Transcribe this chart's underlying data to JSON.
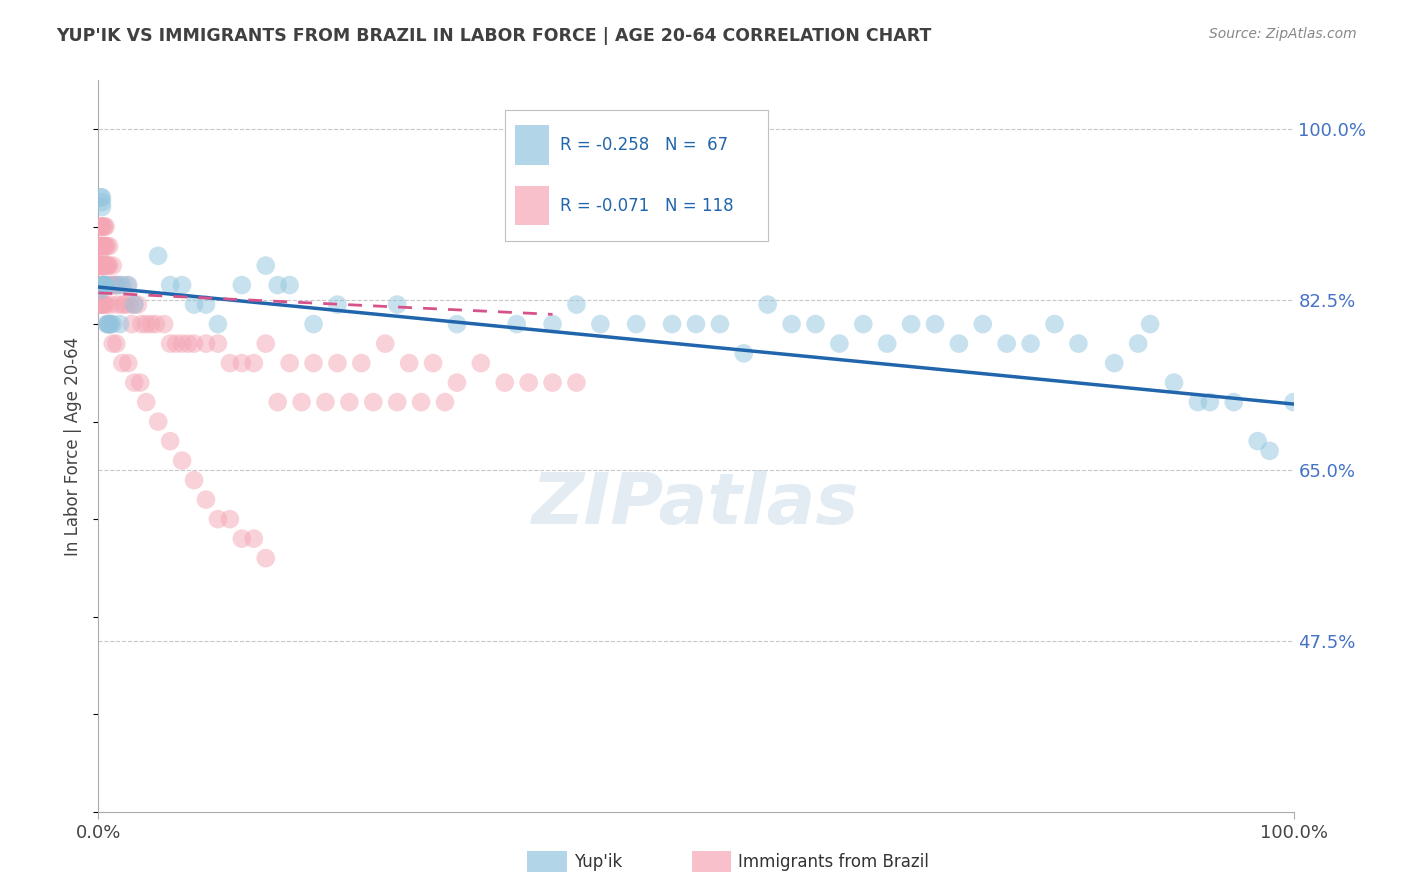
{
  "title": "YUP'IK VS IMMIGRANTS FROM BRAZIL IN LABOR FORCE | AGE 20-64 CORRELATION CHART",
  "source": "Source: ZipAtlas.com",
  "ylabel": "In Labor Force | Age 20-64",
  "legend_line1": "R = -0.258   N =  67",
  "legend_line2": "R = -0.071   N = 118",
  "legend_label1": "Yup'ik",
  "legend_label2": "Immigrants from Brazil",
  "blue_color": "#92c5de",
  "pink_color": "#f4a6b4",
  "blue_line_color": "#2166ac",
  "pink_line_color": "#d6538a",
  "background_color": "#ffffff",
  "grid_color": "#c8c8c8",
  "title_color": "#404040",
  "right_label_color": "#4472c4",
  "blue_x": [
    0.002,
    0.002,
    0.003,
    0.003,
    0.003,
    0.004,
    0.004,
    0.005,
    0.005,
    0.006,
    0.007,
    0.008,
    0.009,
    0.01,
    0.012,
    0.015,
    0.018,
    0.02,
    0.025,
    0.03,
    0.05,
    0.06,
    0.07,
    0.08,
    0.09,
    0.1,
    0.12,
    0.14,
    0.15,
    0.16,
    0.18,
    0.2,
    0.25,
    0.3,
    0.35,
    0.38,
    0.4,
    0.42,
    0.45,
    0.48,
    0.5,
    0.52,
    0.54,
    0.56,
    0.58,
    0.6,
    0.62,
    0.64,
    0.66,
    0.68,
    0.7,
    0.72,
    0.74,
    0.76,
    0.78,
    0.8,
    0.82,
    0.85,
    0.87,
    0.88,
    0.9,
    0.92,
    0.93,
    0.95,
    0.97,
    0.98,
    1.0
  ],
  "blue_y": [
    0.835,
    0.93,
    0.925,
    0.93,
    0.92,
    0.84,
    0.84,
    0.84,
    0.84,
    0.84,
    0.8,
    0.8,
    0.8,
    0.8,
    0.8,
    0.84,
    0.8,
    0.84,
    0.84,
    0.82,
    0.87,
    0.84,
    0.84,
    0.82,
    0.82,
    0.8,
    0.84,
    0.86,
    0.84,
    0.84,
    0.8,
    0.82,
    0.82,
    0.8,
    0.8,
    0.8,
    0.82,
    0.8,
    0.8,
    0.8,
    0.8,
    0.8,
    0.77,
    0.82,
    0.8,
    0.8,
    0.78,
    0.8,
    0.78,
    0.8,
    0.8,
    0.78,
    0.8,
    0.78,
    0.78,
    0.8,
    0.78,
    0.76,
    0.78,
    0.8,
    0.74,
    0.72,
    0.72,
    0.72,
    0.68,
    0.67,
    0.72
  ],
  "pink_x": [
    0.001,
    0.001,
    0.001,
    0.001,
    0.001,
    0.001,
    0.001,
    0.001,
    0.002,
    0.002,
    0.002,
    0.002,
    0.002,
    0.002,
    0.002,
    0.003,
    0.003,
    0.003,
    0.003,
    0.003,
    0.003,
    0.003,
    0.003,
    0.004,
    0.004,
    0.004,
    0.004,
    0.004,
    0.005,
    0.005,
    0.005,
    0.005,
    0.006,
    0.006,
    0.006,
    0.007,
    0.007,
    0.007,
    0.008,
    0.008,
    0.009,
    0.009,
    0.01,
    0.01,
    0.011,
    0.012,
    0.013,
    0.014,
    0.015,
    0.016,
    0.018,
    0.02,
    0.022,
    0.024,
    0.026,
    0.028,
    0.03,
    0.033,
    0.036,
    0.04,
    0.044,
    0.048,
    0.055,
    0.06,
    0.065,
    0.07,
    0.075,
    0.08,
    0.09,
    0.1,
    0.11,
    0.12,
    0.13,
    0.14,
    0.16,
    0.18,
    0.2,
    0.22,
    0.24,
    0.26,
    0.28,
    0.3,
    0.32,
    0.34,
    0.36,
    0.38,
    0.4,
    0.15,
    0.17,
    0.19,
    0.21,
    0.23,
    0.25,
    0.27,
    0.29,
    0.003,
    0.004,
    0.005,
    0.006,
    0.008,
    0.01,
    0.012,
    0.015,
    0.02,
    0.025,
    0.03,
    0.035,
    0.04,
    0.05,
    0.06,
    0.07,
    0.08,
    0.09,
    0.1,
    0.11,
    0.12,
    0.13,
    0.14
  ],
  "pink_y": [
    0.87,
    0.86,
    0.88,
    0.84,
    0.82,
    0.9,
    0.84,
    0.86,
    0.9,
    0.88,
    0.86,
    0.84,
    0.82,
    0.88,
    0.86,
    0.9,
    0.88,
    0.86,
    0.84,
    0.82,
    0.88,
    0.86,
    0.84,
    0.9,
    0.88,
    0.86,
    0.84,
    0.82,
    0.9,
    0.88,
    0.86,
    0.84,
    0.9,
    0.88,
    0.86,
    0.88,
    0.86,
    0.84,
    0.86,
    0.84,
    0.88,
    0.86,
    0.84,
    0.82,
    0.84,
    0.86,
    0.84,
    0.84,
    0.84,
    0.82,
    0.84,
    0.82,
    0.82,
    0.84,
    0.82,
    0.8,
    0.82,
    0.82,
    0.8,
    0.8,
    0.8,
    0.8,
    0.8,
    0.78,
    0.78,
    0.78,
    0.78,
    0.78,
    0.78,
    0.78,
    0.76,
    0.76,
    0.76,
    0.78,
    0.76,
    0.76,
    0.76,
    0.76,
    0.78,
    0.76,
    0.76,
    0.74,
    0.76,
    0.74,
    0.74,
    0.74,
    0.74,
    0.72,
    0.72,
    0.72,
    0.72,
    0.72,
    0.72,
    0.72,
    0.72,
    0.84,
    0.84,
    0.82,
    0.82,
    0.8,
    0.8,
    0.78,
    0.78,
    0.76,
    0.76,
    0.74,
    0.74,
    0.72,
    0.7,
    0.68,
    0.66,
    0.64,
    0.62,
    0.6,
    0.6,
    0.58,
    0.58,
    0.56
  ],
  "blue_trend_x": [
    0.0,
    1.0
  ],
  "blue_trend_y": [
    0.838,
    0.718
  ],
  "pink_trend_x": [
    0.0,
    0.38
  ],
  "pink_trend_y": [
    0.832,
    0.81
  ],
  "xlim": [
    0.0,
    1.0
  ],
  "ylim": [
    0.3,
    1.05
  ],
  "yticks": [
    0.475,
    0.65,
    0.825,
    1.0
  ],
  "ytick_labels": [
    "47.5%",
    "65.0%",
    "82.5%",
    "100.0%"
  ],
  "xticks": [
    0.0,
    1.0
  ],
  "xtick_labels": [
    "0.0%",
    "100.0%"
  ]
}
